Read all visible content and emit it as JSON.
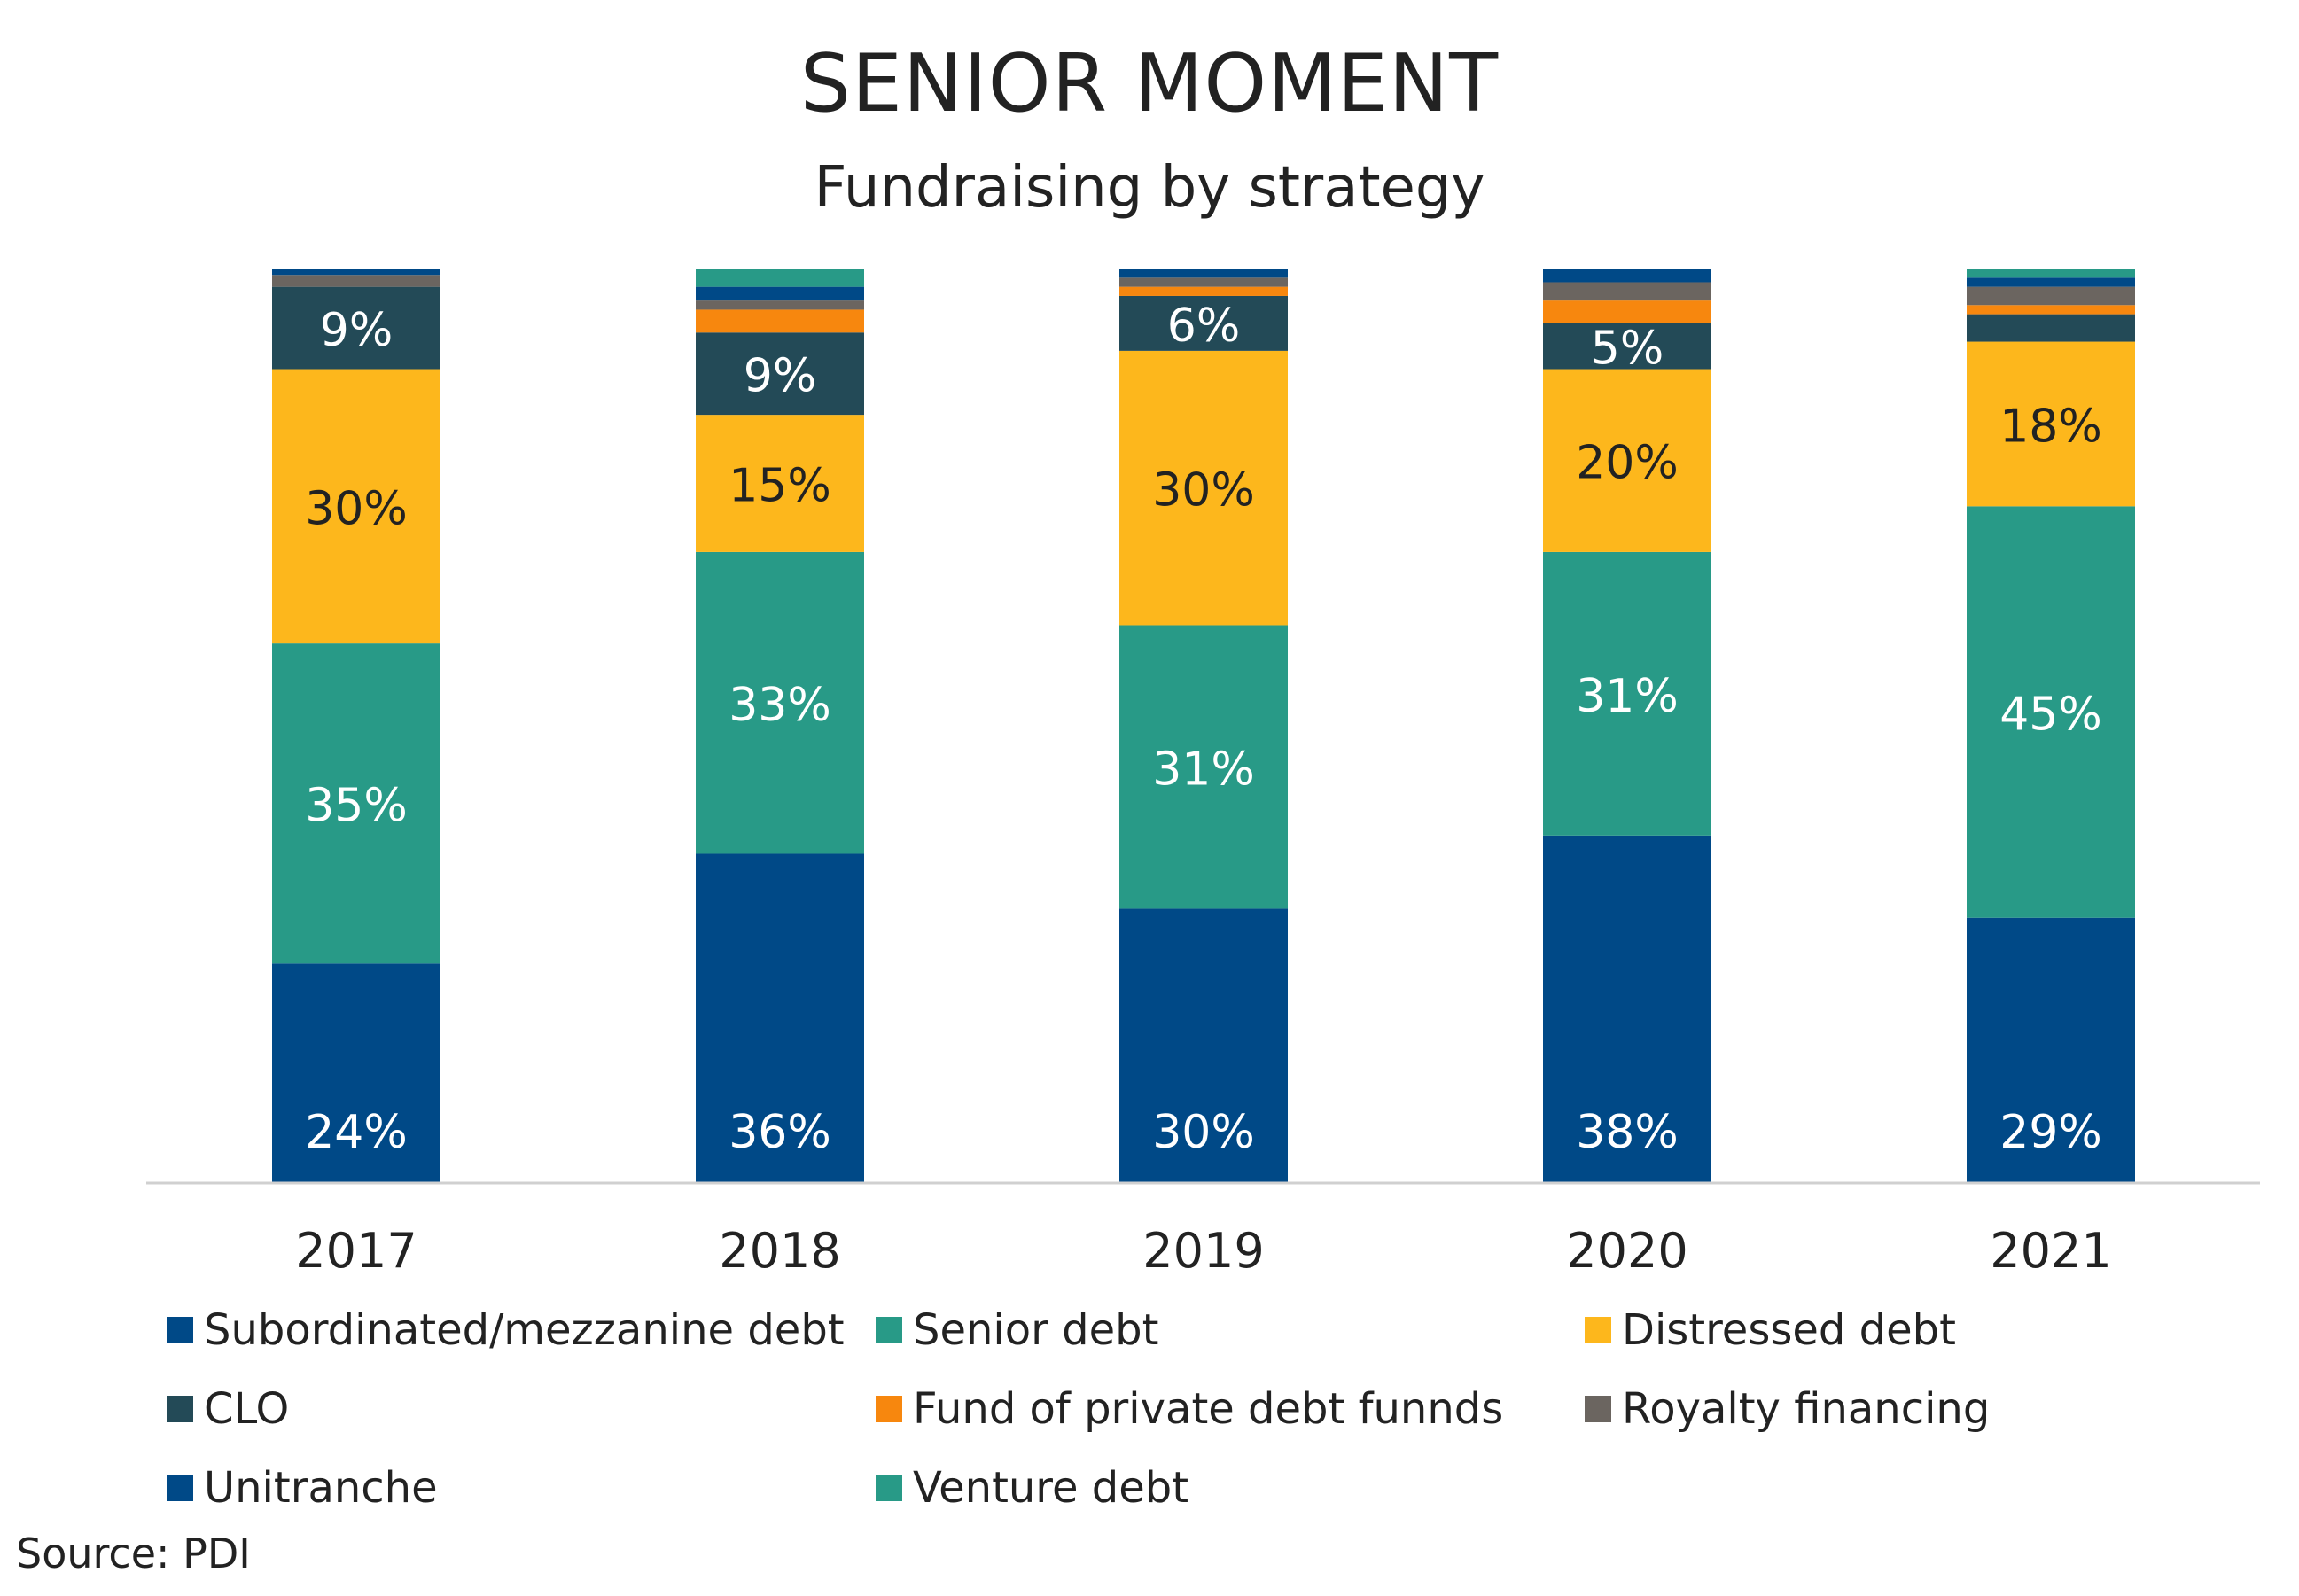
{
  "chart_data": {
    "type": "bar",
    "stacked": true,
    "title": "SENIOR MOMENT",
    "subtitle": "Fundraising by strategy",
    "categories": [
      "2017",
      "2018",
      "2019",
      "2020",
      "2021"
    ],
    "ylim": [
      0,
      100
    ],
    "grid": false,
    "legend_position": "bottom",
    "series": [
      {
        "name": "Subordinated/mezzanine debt",
        "color": "#004987",
        "values": [
          24,
          36,
          30,
          38,
          29
        ],
        "labels": [
          "24%",
          "36%",
          "30%",
          "38%",
          "29%"
        ]
      },
      {
        "name": "Senior debt",
        "color": "#289A87",
        "values": [
          35,
          33,
          31,
          31,
          45
        ],
        "labels": [
          "35%",
          "33%",
          "31%",
          "31%",
          "45%"
        ]
      },
      {
        "name": "Distressed debt",
        "color": "#FDB71C",
        "values": [
          30,
          15,
          30,
          20,
          18
        ],
        "labels": [
          "30%",
          "15%",
          "30%",
          "20%",
          "18%"
        ]
      },
      {
        "name": "CLO",
        "color": "#234A57",
        "values": [
          9,
          9,
          6,
          5,
          3
        ],
        "labels": [
          "9%",
          "9%",
          "6%",
          "5%",
          ""
        ]
      },
      {
        "name": "Fund of private debt funnds",
        "color": "#F7870E",
        "values": [
          0,
          2.5,
          1,
          2.5,
          1
        ],
        "labels": [
          "",
          "",
          "",
          "",
          ""
        ]
      },
      {
        "name": "Royalty financing",
        "color": "#6B6560",
        "values": [
          1.3,
          1,
          1,
          2,
          2
        ],
        "labels": [
          "",
          "",
          "",
          "",
          ""
        ]
      },
      {
        "name": "Unitranche",
        "color": "#004987",
        "values": [
          0.7,
          1.5,
          1,
          1.5,
          1
        ],
        "labels": [
          "",
          "",
          "",
          "",
          ""
        ]
      },
      {
        "name": "Venture debt",
        "color": "#289A87",
        "values": [
          0,
          2,
          0,
          0,
          1
        ],
        "labels": [
          "",
          "",
          "",
          "",
          ""
        ]
      }
    ]
  },
  "source_note": "Source: PDI"
}
